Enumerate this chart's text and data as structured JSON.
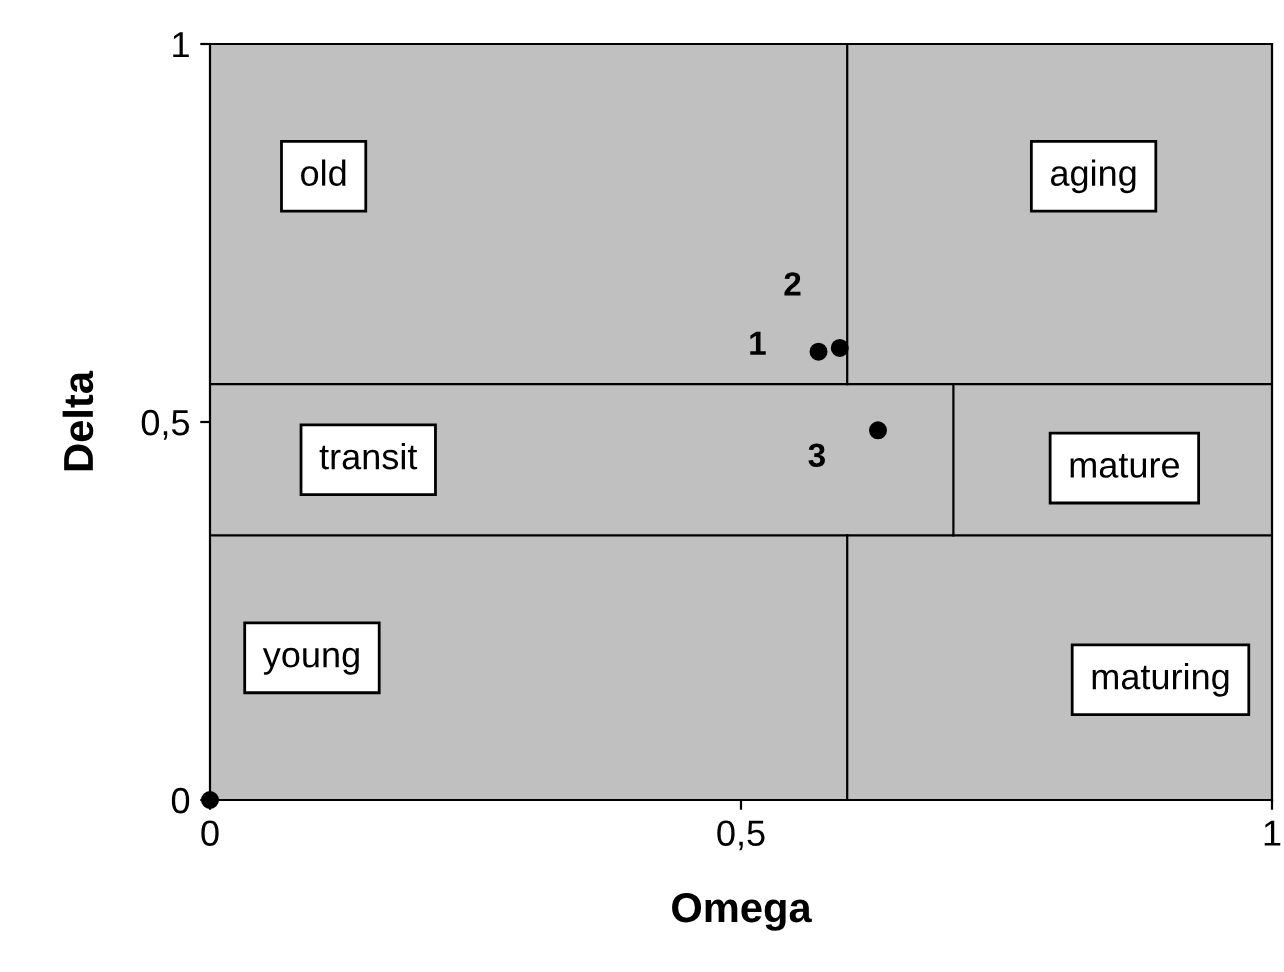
{
  "chart_data": {
    "type": "scatter",
    "xlabel": "Omega",
    "ylabel": "Delta",
    "xlim": [
      0,
      1
    ],
    "ylim": [
      0,
      1
    ],
    "xticks": [
      0,
      {
        "value": 0.5,
        "label": "0,5"
      },
      1
    ],
    "yticks": [
      0,
      {
        "value": 0.5,
        "label": "0,5"
      },
      1
    ],
    "grid": false,
    "legend": false,
    "series": [
      {
        "color": "#000000",
        "marker": "circle",
        "x": [
          0,
          0.573,
          0.593,
          0.629
        ],
        "values": [
          0,
          0.593,
          0.598,
          0.489
        ]
      },
      {
        "type": "line",
        "color": "#000000",
        "x": [
          0,
          1
        ],
        "values": [
          0.55,
          0.55
        ]
      },
      {
        "type": "line",
        "color": "#000000",
        "x": [
          0,
          1
        ],
        "values": [
          0.35,
          0.35
        ]
      },
      {
        "type": "line",
        "color": "#000000",
        "x": [
          0.6,
          0.6
        ],
        "values": [
          0.55,
          1
        ]
      },
      {
        "type": "line",
        "color": "#000000",
        "x": [
          0.6,
          0.6
        ],
        "values": [
          0,
          0.35
        ]
      },
      {
        "type": "line",
        "color": "#000000",
        "x": [
          0.7,
          0.7
        ],
        "values": [
          0.35,
          0.55
        ]
      }
    ],
    "annotations": [
      "old",
      "aging",
      "transit",
      "mature",
      "young",
      "maturing",
      {
        "text": "1",
        "x": 0.573,
        "y": 0.593
      },
      {
        "text": "2",
        "x": 0.593,
        "y": 0.598
      },
      {
        "text": "3",
        "x": 0.629,
        "y": 0.489
      }
    ]
  }
}
